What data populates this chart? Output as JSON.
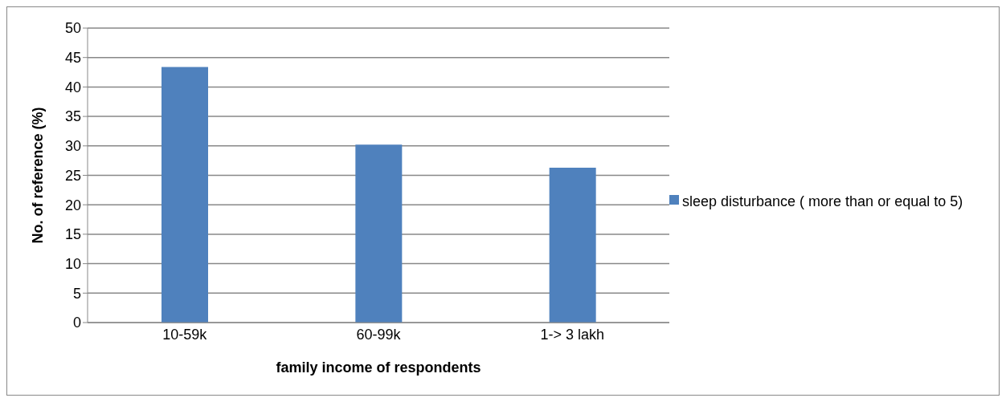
{
  "chart_data": {
    "type": "bar",
    "xlabel": "family income of respondents",
    "ylabel": "No. of reference (%)",
    "categories": [
      "10-59k",
      "60-99k",
      "1-> 3 lakh"
    ],
    "series": [
      {
        "name": "sleep disturbance ( more than or equal to 5)",
        "color": "#4f81bd",
        "values": [
          43.4,
          30.2,
          26.3
        ]
      }
    ],
    "ylim": [
      0,
      50
    ],
    "yticks": [
      0,
      5,
      10,
      15,
      20,
      25,
      30,
      35,
      40,
      45,
      50
    ],
    "grid": "y",
    "legend": "right"
  }
}
